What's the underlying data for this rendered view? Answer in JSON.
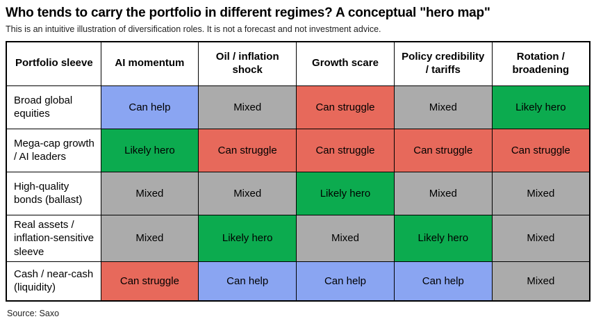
{
  "header": {
    "title": "Who tends to carry the portfolio in different regimes? A conceptual \"hero map\"",
    "subtitle": "This is an intuitive illustration of diversification roles. It is not a forecast and not investment advice."
  },
  "source": "Source: Saxo",
  "cell_colors": {
    "Likely hero": "#0cab4f",
    "Can help": "#8aa5f2",
    "Can struggle": "#e7695b",
    "Mixed": "#ababab"
  },
  "chart_data": {
    "type": "heatmap",
    "title": "Who tends to carry the portfolio in different regimes? A conceptual \"hero map\"",
    "columns": [
      "Portfolio sleeve",
      "AI momentum",
      "Oil / inflation shock",
      "Growth scare",
      "Policy credibility / tariffs",
      "Rotation / broadening"
    ],
    "legend_values": [
      "Likely hero",
      "Can help",
      "Mixed",
      "Can struggle"
    ],
    "rows": [
      {
        "label": "Broad global equities",
        "cells": [
          "Can help",
          "Mixed",
          "Can struggle",
          "Mixed",
          "Likely hero"
        ]
      },
      {
        "label": "Mega-cap growth / AI leaders",
        "cells": [
          "Likely hero",
          "Can struggle",
          "Can struggle",
          "Can struggle",
          "Can struggle"
        ]
      },
      {
        "label": "High-quality bonds (ballast)",
        "cells": [
          "Mixed",
          "Mixed",
          "Likely hero",
          "Mixed",
          "Mixed"
        ]
      },
      {
        "label": "Real assets / inflation-sensitive sleeve",
        "cells": [
          "Mixed",
          "Likely hero",
          "Mixed",
          "Likely hero",
          "Mixed"
        ]
      },
      {
        "label": "Cash / near-cash (liquidity)",
        "cells": [
          "Can struggle",
          "Can help",
          "Can help",
          "Can help",
          "Mixed"
        ]
      }
    ]
  }
}
